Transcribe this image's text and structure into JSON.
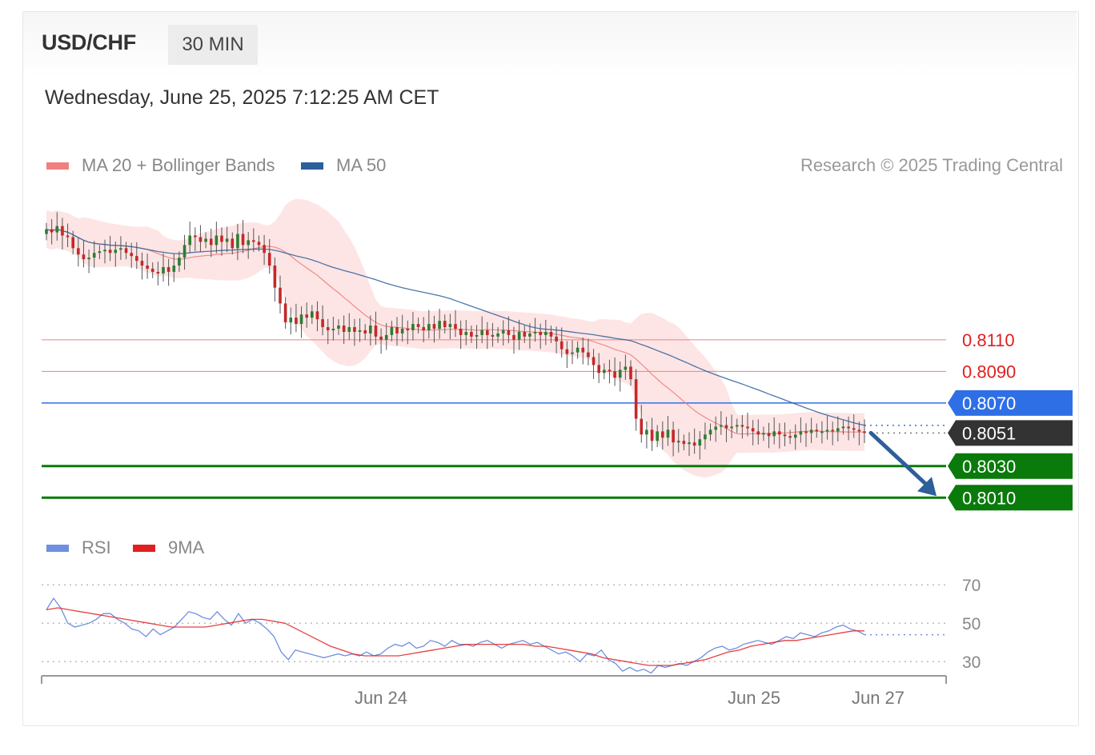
{
  "header": {
    "symbol": "USD/CHF",
    "timeframe": "30 MIN",
    "datetime": "Wednesday, June 25, 2025 7:12:25 AM CET"
  },
  "legend": {
    "ma20_bb": {
      "label": "MA 20 + Bollinger Bands",
      "color": "#f08080"
    },
    "ma50": {
      "label": "MA 50",
      "color": "#2d5f9a"
    },
    "copyright": "Research © 2025 Trading Central"
  },
  "rsi_legend": {
    "rsi": {
      "label": "RSI",
      "color": "#6f8fe0"
    },
    "ma9": {
      "label": "9MA",
      "color": "#e02020"
    }
  },
  "colors": {
    "up_candle": "#2e7d32",
    "down_candle": "#c62828",
    "band_fill": "#fde0e0",
    "resistance": "#f08080",
    "pivot": "#2f6fe6",
    "support": "#0a7a0a",
    "last_price": "#333333",
    "arrow": "#2d5f9a"
  },
  "chart_data": [
    {
      "type": "candlestick",
      "timeframe": "30 MIN",
      "x_ticks": [
        "Jun 24",
        "Jun 25",
        "Jun 27"
      ],
      "levels": [
        {
          "label": "0.8110",
          "value": 0.811,
          "kind": "resistance"
        },
        {
          "label": "0.8090",
          "value": 0.809,
          "kind": "resistance"
        },
        {
          "label": "0.8070",
          "value": 0.807,
          "kind": "pivot"
        },
        {
          "label": "0.8051",
          "value": 0.8051,
          "kind": "last"
        },
        {
          "label": "0.8030",
          "value": 0.803,
          "kind": "support"
        },
        {
          "label": "0.8010",
          "value": 0.801,
          "kind": "support"
        }
      ],
      "forecast_arrow": {
        "from": 0.8051,
        "to": 0.801
      },
      "price_range": [
        0.7998,
        0.8196
      ],
      "close_series": [
        0.818,
        0.8178,
        0.8182,
        0.8176,
        0.8175,
        0.8168,
        0.8164,
        0.8161,
        0.8162,
        0.8165,
        0.8166,
        0.8167,
        0.8165,
        0.8167,
        0.8168,
        0.8165,
        0.8163,
        0.816,
        0.8157,
        0.8155,
        0.8153,
        0.8152,
        0.8156,
        0.8153,
        0.8157,
        0.8162,
        0.817,
        0.8176,
        0.8175,
        0.8172,
        0.8174,
        0.817,
        0.8176,
        0.8172,
        0.8174,
        0.8168,
        0.8177,
        0.817,
        0.8173,
        0.8172,
        0.817,
        0.8165,
        0.8157,
        0.8143,
        0.8133,
        0.8121,
        0.8124,
        0.812,
        0.8126,
        0.8124,
        0.8128,
        0.8123,
        0.8118,
        0.8116,
        0.8117,
        0.8119,
        0.8115,
        0.8118,
        0.8115,
        0.8116,
        0.8114,
        0.8119,
        0.8112,
        0.811,
        0.8113,
        0.8118,
        0.8114,
        0.8117,
        0.8116,
        0.812,
        0.8118,
        0.8116,
        0.812,
        0.8117,
        0.8122,
        0.8118,
        0.812,
        0.8117,
        0.8113,
        0.8115,
        0.8112,
        0.8113,
        0.8116,
        0.8113,
        0.8112,
        0.8114,
        0.8116,
        0.8113,
        0.811,
        0.8115,
        0.8112,
        0.8114,
        0.8115,
        0.8113,
        0.8115,
        0.8112,
        0.8109,
        0.8104,
        0.8101,
        0.8102,
        0.8105,
        0.8102,
        0.8099,
        0.8094,
        0.8089,
        0.8091,
        0.809,
        0.8086,
        0.8091,
        0.8093,
        0.8085,
        0.806,
        0.805,
        0.8053,
        0.8046,
        0.8052,
        0.8048,
        0.8053,
        0.8045,
        0.8046,
        0.8044,
        0.8045,
        0.8043,
        0.8047,
        0.805,
        0.8053,
        0.8055,
        0.8056,
        0.8054,
        0.8055,
        0.8056,
        0.8055,
        0.8054,
        0.8052,
        0.805,
        0.8051,
        0.8049,
        0.8052,
        0.805,
        0.8049,
        0.8048,
        0.805,
        0.8052,
        0.8051,
        0.8053,
        0.8052,
        0.8052,
        0.8053,
        0.8052,
        0.8054,
        0.8055,
        0.8054,
        0.8053,
        0.8052,
        0.8051
      ]
    },
    {
      "type": "line",
      "name": "RSI",
      "y_ticks": [
        70,
        50,
        30
      ],
      "y_range": [
        18,
        78
      ],
      "series": [
        {
          "name": "RSI",
          "values": [
            57,
            63,
            58,
            50,
            48,
            49,
            50,
            52,
            55,
            55,
            52,
            50,
            47,
            46,
            43,
            47,
            44,
            46,
            48,
            52,
            56,
            55,
            53,
            52,
            56,
            52,
            49,
            55,
            50,
            52,
            50,
            47,
            43,
            35,
            31,
            36,
            35,
            34,
            33,
            32,
            33,
            34,
            33,
            34,
            33,
            35,
            33,
            34,
            37,
            39,
            38,
            40,
            37,
            38,
            41,
            40,
            38,
            41,
            39,
            39,
            38,
            40,
            41,
            39,
            37,
            39,
            40,
            41,
            39,
            40,
            38,
            36,
            34,
            35,
            33,
            30,
            34,
            33,
            36,
            31,
            29,
            25,
            27,
            25,
            26,
            24,
            28,
            27,
            28,
            29,
            28,
            30,
            32,
            35,
            37,
            38,
            36,
            37,
            39,
            40,
            41,
            40,
            39,
            41,
            43,
            42,
            45,
            44,
            43,
            45,
            46,
            48,
            49,
            47,
            46,
            44
          ]
        },
        {
          "name": "9MA",
          "values": [
            57,
            58,
            57,
            56,
            55,
            54,
            53,
            52,
            51,
            50,
            49,
            48,
            48,
            48,
            48,
            49,
            50,
            51,
            52,
            52,
            51,
            50,
            47,
            44,
            41,
            38,
            36,
            34,
            33,
            33,
            33,
            33,
            34,
            35,
            36,
            37,
            38,
            39,
            39,
            39,
            39,
            39,
            39,
            38,
            38,
            37,
            36,
            35,
            34,
            32,
            31,
            30,
            29,
            28,
            28,
            28,
            29,
            30,
            31,
            33,
            35,
            36,
            38,
            39,
            40,
            41,
            41,
            42,
            43,
            44,
            45,
            46,
            46
          ]
        }
      ]
    }
  ]
}
